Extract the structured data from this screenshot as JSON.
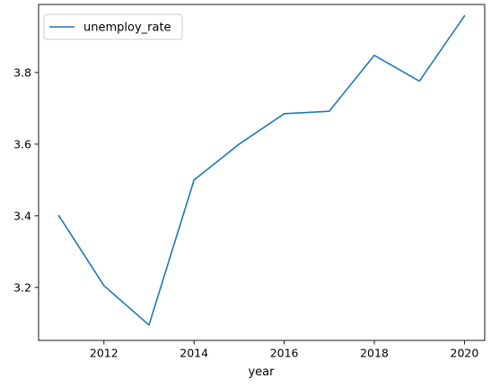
{
  "chart_data": {
    "type": "line",
    "xlabel": "year",
    "ylabel": "",
    "title": "",
    "x": [
      2011,
      2012,
      2013,
      2014,
      2015,
      2016,
      2017,
      2018,
      2019,
      2020
    ],
    "series": [
      {
        "name": "unemploy_rate",
        "color": "#1f77b4",
        "values": [
          3.4,
          3.205,
          3.095,
          3.5,
          3.6,
          3.685,
          3.692,
          3.848,
          3.776,
          3.958
        ]
      }
    ],
    "xlim": [
      2010.55,
      2020.45
    ],
    "ylim": [
      3.052,
      3.99
    ],
    "xticks": [
      2012,
      2014,
      2016,
      2018,
      2020
    ],
    "xtick_labels": [
      "2012",
      "2014",
      "2016",
      "2018",
      "2020"
    ],
    "yticks": [
      3.2,
      3.4,
      3.6,
      3.8
    ],
    "ytick_labels": [
      "3.2",
      "3.4",
      "3.6",
      "3.8"
    ],
    "grid": false,
    "legend": "top-left"
  }
}
